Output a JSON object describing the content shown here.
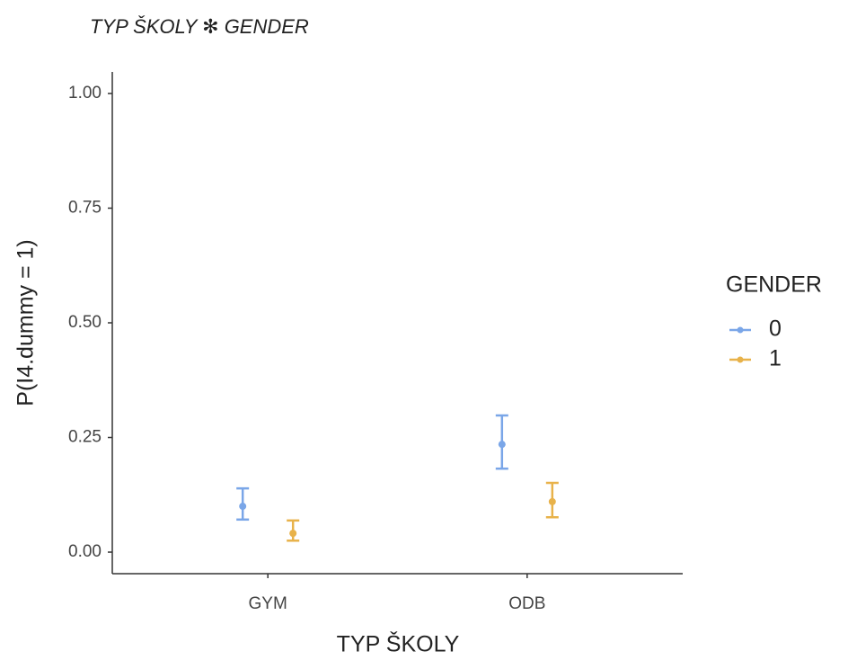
{
  "chart_data": {
    "type": "errorbar",
    "title": "TYP ŠKOLY ✻ GENDER",
    "x_label": "TYP ŠKOLY",
    "y_label": "P(I4.dummy = 1)",
    "legend_title": "GENDER",
    "legend_position": "right",
    "categories": [
      "GYM",
      "ODB"
    ],
    "series": [
      {
        "name": "0",
        "color": "#7aa6e8",
        "values": [
          0.1,
          0.235
        ],
        "lower": [
          0.071,
          0.182
        ],
        "upper": [
          0.139,
          0.298
        ]
      },
      {
        "name": "1",
        "color": "#e8b24a",
        "values": [
          0.041,
          0.11
        ],
        "lower": [
          0.025,
          0.076
        ],
        "upper": [
          0.069,
          0.151
        ]
      }
    ],
    "ylim": [
      -0.047,
      1.047
    ],
    "yticks": [
      {
        "value": 0,
        "label": "0.00"
      },
      0.25,
      {
        "value": 0.5,
        "label": "0.50"
      },
      0.75,
      {
        "value": 1,
        "label": "1.00"
      }
    ],
    "grid": false
  }
}
